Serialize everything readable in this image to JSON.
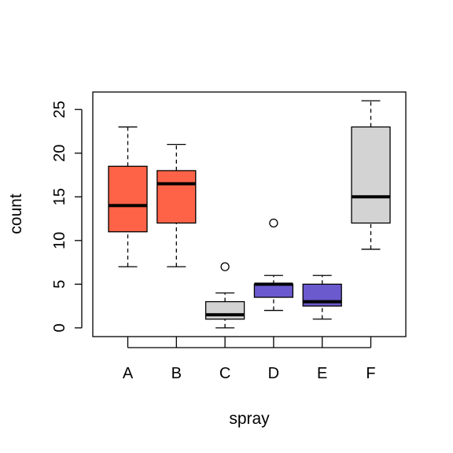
{
  "chart_data": {
    "type": "boxplot",
    "title": "",
    "xlabel": "spray",
    "ylabel": "count",
    "ylim": [
      -1,
      27
    ],
    "yticks": [
      0,
      5,
      10,
      15,
      20,
      25
    ],
    "ytick_labels": [
      "0",
      "5",
      "10",
      "15",
      "20",
      "25"
    ],
    "grid": false,
    "categories": [
      "A",
      "B",
      "C",
      "D",
      "E",
      "F"
    ],
    "boxes": [
      {
        "label": "A",
        "whisker_low": 7,
        "q1": 11,
        "median": 14,
        "q3": 18.5,
        "whisker_high": 23,
        "outliers": [],
        "color": "#FF6347"
      },
      {
        "label": "B",
        "whisker_low": 7,
        "q1": 12,
        "median": 16.5,
        "q3": 18,
        "whisker_high": 21,
        "outliers": [],
        "color": "#FF6347"
      },
      {
        "label": "C",
        "whisker_low": 0,
        "q1": 1,
        "median": 1.5,
        "q3": 3,
        "whisker_high": 4,
        "outliers": [
          7
        ],
        "color": "#D3D3D3"
      },
      {
        "label": "D",
        "whisker_low": 2,
        "q1": 3.5,
        "median": 5,
        "q3": 5,
        "whisker_high": 6,
        "outliers": [
          12
        ],
        "color": "#6A5ACD"
      },
      {
        "label": "E",
        "whisker_low": 1,
        "q1": 2.5,
        "median": 3,
        "q3": 5,
        "whisker_high": 6,
        "outliers": [],
        "color": "#6A5ACD"
      },
      {
        "label": "F",
        "whisker_low": 9,
        "q1": 12,
        "median": 15,
        "q3": 23,
        "whisker_high": 26,
        "outliers": [],
        "color": "#D3D3D3"
      }
    ]
  }
}
